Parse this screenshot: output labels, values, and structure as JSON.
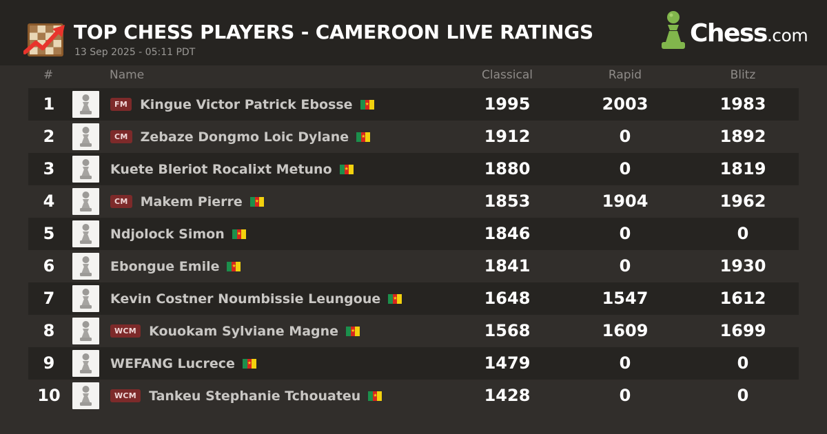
{
  "header": {
    "title": "TOP CHESS PLAYERS - CAMEROON LIVE RATINGS",
    "subtitle": "13 Sep 2025 - 05:11 PDT",
    "brand_main": "Chess",
    "brand_tld": ".com"
  },
  "columns": {
    "rank": "#",
    "name": "Name",
    "classical": "Classical",
    "rapid": "Rapid",
    "blitz": "Blitz"
  },
  "icons": {
    "logo": "chessboard-trending-up-icon",
    "avatar": "pawn-icon",
    "flag": "cameroon-flag-icon"
  },
  "colors": {
    "background": "#312e2b",
    "header": "#262421",
    "badge": "#7d2a2a",
    "brand_green": "#81b64c"
  },
  "players": [
    {
      "rank": "1",
      "title": "FM",
      "name": "Kingue Victor Patrick Ebosse",
      "classical": "1995",
      "rapid": "2003",
      "blitz": "1983"
    },
    {
      "rank": "2",
      "title": "CM",
      "name": "Zebaze Dongmo Loic Dylane",
      "classical": "1912",
      "rapid": "0",
      "blitz": "1892"
    },
    {
      "rank": "3",
      "title": "",
      "name": "Kuete Bleriot Rocalixt Metuno",
      "classical": "1880",
      "rapid": "0",
      "blitz": "1819"
    },
    {
      "rank": "4",
      "title": "CM",
      "name": "Makem Pierre",
      "classical": "1853",
      "rapid": "1904",
      "blitz": "1962"
    },
    {
      "rank": "5",
      "title": "",
      "name": "Ndjolock Simon",
      "classical": "1846",
      "rapid": "0",
      "blitz": "0"
    },
    {
      "rank": "6",
      "title": "",
      "name": "Ebongue Emile",
      "classical": "1841",
      "rapid": "0",
      "blitz": "1930"
    },
    {
      "rank": "7",
      "title": "",
      "name": "Kevin Costner Noumbissie Leungoue",
      "classical": "1648",
      "rapid": "1547",
      "blitz": "1612"
    },
    {
      "rank": "8",
      "title": "WCM",
      "name": "Kouokam Sylviane Magne",
      "classical": "1568",
      "rapid": "1609",
      "blitz": "1699"
    },
    {
      "rank": "9",
      "title": "",
      "name": "WEFANG Lucrece",
      "classical": "1479",
      "rapid": "0",
      "blitz": "0"
    },
    {
      "rank": "10",
      "title": "WCM",
      "name": "Tankeu Stephanie Tchouateu",
      "classical": "1428",
      "rapid": "0",
      "blitz": "0"
    }
  ]
}
